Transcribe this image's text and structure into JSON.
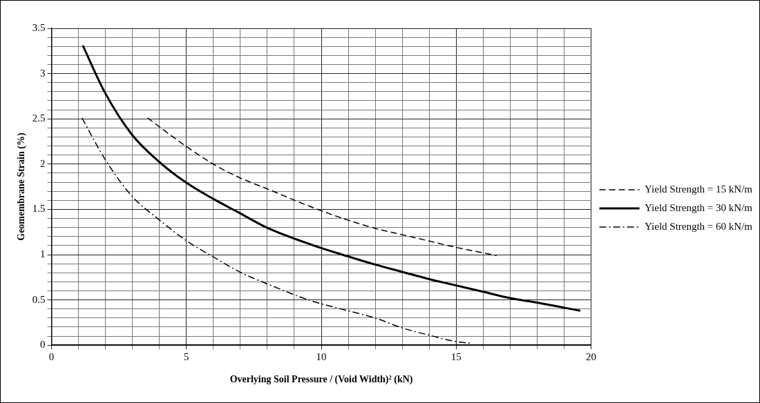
{
  "chart_data": {
    "type": "line",
    "xlabel": "Overlying Soil Pressure / (Void Width)² (kN)",
    "ylabel": "Geomembrane Strain (%)",
    "xlim": [
      0,
      20
    ],
    "xticks": [
      0,
      5,
      10,
      15,
      20
    ],
    "ylim": [
      0,
      3.5
    ],
    "yticks": [
      0,
      0.5,
      1,
      1.5,
      2,
      2.5,
      3,
      3.5
    ],
    "grid": true,
    "legend": "right",
    "marker": "none",
    "series": [
      {
        "name": "Yield Strength = 15 kN/m",
        "color": "#000000",
        "line_style": "dashed",
        "x": [
          3.56,
          4.97,
          6,
          6.97,
          7.97,
          9.6,
          11,
          12,
          13,
          14,
          15,
          16.5
        ],
        "values": [
          2.51,
          2.2,
          2.0,
          1.85,
          1.73,
          1.53,
          1.38,
          1.29,
          1.22,
          1.15,
          1.08,
          0.99
        ]
      },
      {
        "name": "Yield Strength = 30 kN/m",
        "color": "#000000",
        "line_style": "solid",
        "x": [
          1.16,
          1.98,
          2.97,
          3.97,
          5.02,
          5.97,
          6.97,
          7.97,
          9.63,
          11,
          12,
          13,
          14,
          15,
          16,
          17,
          18,
          19.6
        ],
        "values": [
          3.31,
          2.79,
          2.33,
          2.03,
          1.79,
          1.62,
          1.46,
          1.3,
          1.11,
          0.98,
          0.89,
          0.81,
          0.73,
          0.66,
          0.59,
          0.52,
          0.47,
          0.38
        ]
      },
      {
        "name": "Yield Strength = 60 kN/m",
        "color": "#000000",
        "line_style": "dashdot",
        "x": [
          1.13,
          1.97,
          2.97,
          3.97,
          5.02,
          5.97,
          6.97,
          7.97,
          9.63,
          11,
          12,
          13,
          14,
          15,
          15.6
        ],
        "values": [
          2.51,
          2.06,
          1.65,
          1.39,
          1.15,
          0.98,
          0.81,
          0.68,
          0.49,
          0.38,
          0.3,
          0.19,
          0.11,
          0.04,
          0.02
        ]
      }
    ]
  }
}
